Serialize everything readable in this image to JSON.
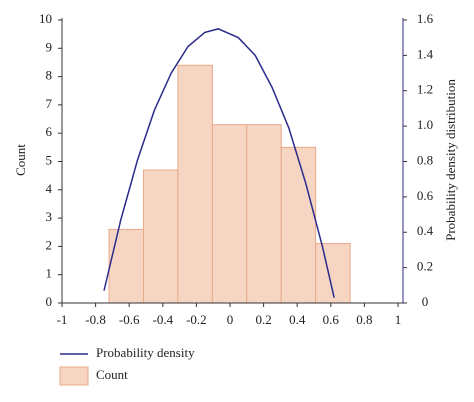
{
  "chart_data": {
    "type": "histogram",
    "ylabel": "Count",
    "y2label": "Probability density distribution",
    "bins": [
      -0.72,
      -0.515,
      -0.31,
      -0.105,
      0.1,
      0.305,
      0.51,
      0.715
    ],
    "values": [
      2.6,
      4.7,
      8.4,
      6.3,
      6.3,
      5.5,
      2.1
    ],
    "name": "Count",
    "color": "#f6d6c2",
    "edge_color": "#e9a98a",
    "density": {
      "name": "Probability density",
      "color": "#2b2b8c",
      "axis": "y2",
      "x": [
        -0.75,
        -0.65,
        -0.55,
        -0.45,
        -0.35,
        -0.25,
        -0.15,
        -0.07,
        0.05,
        0.15,
        0.25,
        0.35,
        0.45,
        0.55,
        0.62
      ],
      "values": [
        0.07,
        0.47,
        0.81,
        1.09,
        1.3,
        1.45,
        1.53,
        1.55,
        1.5,
        1.4,
        1.22,
        0.99,
        0.68,
        0.32,
        0.03
      ]
    },
    "xlim": [
      -1,
      1
    ],
    "xticks": [
      -1,
      -0.8,
      -0.6,
      -0.4,
      -0.2,
      0,
      0.2,
      0.4,
      0.6,
      0.8,
      1
    ],
    "ylim": [
      0,
      10
    ],
    "yticks": [
      0,
      1,
      2,
      3,
      4,
      5,
      6,
      7,
      8,
      9,
      10
    ],
    "y2lim": [
      0,
      1.6
    ],
    "y2ticks": [
      0,
      0.2,
      0.4,
      0.6,
      0.8,
      {
        "value": 1,
        "label": "1.0"
      },
      1.2,
      1.4,
      1.6
    ]
  }
}
